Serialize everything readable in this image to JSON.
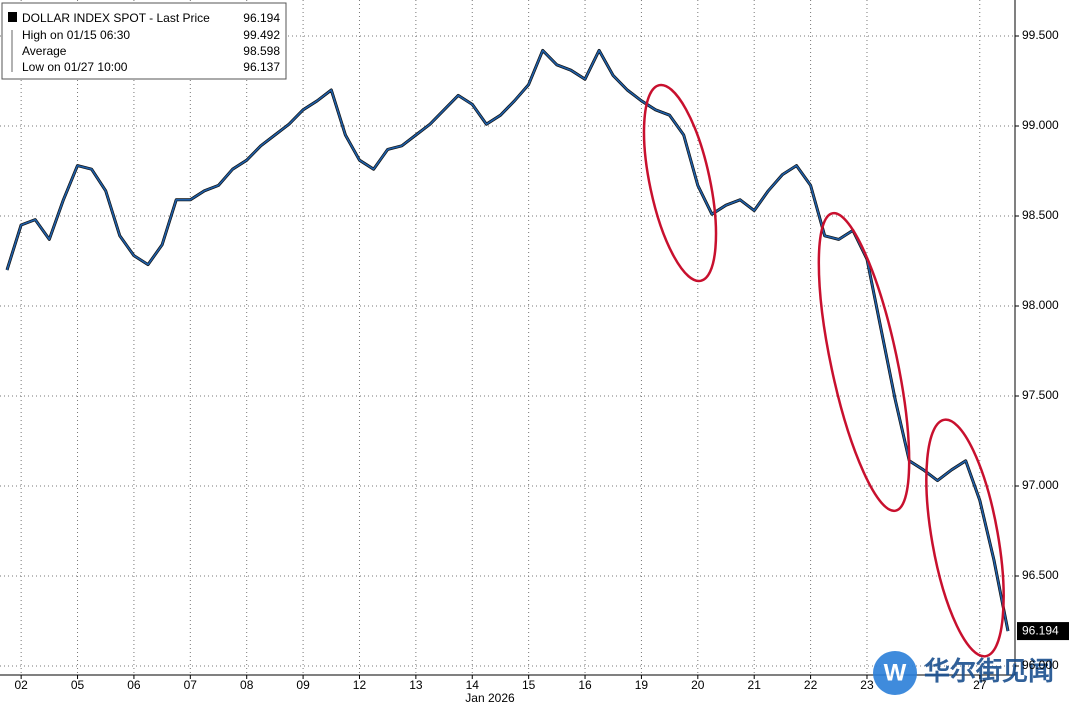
{
  "chart_data": {
    "type": "line",
    "legend_items": [
      {
        "label": "DOLLAR INDEX SPOT - Last Price",
        "value": 96.194
      },
      {
        "label": "High on 01/15 06:30",
        "value": 99.492
      },
      {
        "label": "Average",
        "value": 98.598
      },
      {
        "label": "Low on 01/27 10:00",
        "value": 96.137
      }
    ],
    "x_label": "Jan 2026",
    "watermark": "华尔街见闻",
    "categories": [
      null,
      "02",
      null,
      null,
      null,
      "05",
      null,
      null,
      null,
      "06",
      null,
      null,
      null,
      "07",
      null,
      null,
      null,
      "08",
      null,
      null,
      null,
      "09",
      null,
      null,
      null,
      "12",
      null,
      null,
      null,
      "13",
      null,
      null,
      null,
      "14",
      null,
      null,
      null,
      "15",
      null,
      null,
      null,
      "16",
      null,
      null,
      null,
      "19",
      null,
      null,
      null,
      "20",
      null,
      null,
      null,
      "21",
      null,
      null,
      null,
      "22",
      null,
      null,
      null,
      "23",
      null,
      null,
      null,
      null,
      null,
      null,
      null,
      "27",
      null,
      null
    ],
    "series": [
      {
        "name": "DOLLAR INDEX SPOT",
        "color": "#1f5fa8",
        "values": [
          98.2,
          98.45,
          98.48,
          98.37,
          98.59,
          98.78,
          98.76,
          98.64,
          98.39,
          98.28,
          98.23,
          98.34,
          98.59,
          98.59,
          98.64,
          98.67,
          98.76,
          98.81,
          98.89,
          98.95,
          99.01,
          99.09,
          99.14,
          99.2,
          98.95,
          98.81,
          98.76,
          98.87,
          98.89,
          98.95,
          99.01,
          99.09,
          99.17,
          99.12,
          99.01,
          99.06,
          99.14,
          99.23,
          99.42,
          99.34,
          99.31,
          99.26,
          99.42,
          99.28,
          99.2,
          99.14,
          99.09,
          99.06,
          98.95,
          98.67,
          98.51,
          98.56,
          98.59,
          98.53,
          98.64,
          98.73,
          98.78,
          98.67,
          98.39,
          98.37,
          98.42,
          98.26,
          97.87,
          97.48,
          97.14,
          97.09,
          97.03,
          97.09,
          97.14,
          96.92,
          96.59,
          96.194
        ]
      }
    ],
    "ylim": [
      95.95,
      99.7
    ],
    "yticks": [
      {
        "value": 96,
        "label": "96.000"
      },
      {
        "value": 96.5,
        "label": "96.500"
      },
      {
        "value": 97,
        "label": "97.000"
      },
      {
        "value": 97.5,
        "label": "97.500"
      },
      {
        "value": 98,
        "label": "98.000"
      },
      {
        "value": 98.5,
        "label": "98.500"
      },
      {
        "value": 99,
        "label": "99.000"
      },
      {
        "value": 99.5,
        "label": "99.500"
      }
    ],
    "grid": true
  }
}
